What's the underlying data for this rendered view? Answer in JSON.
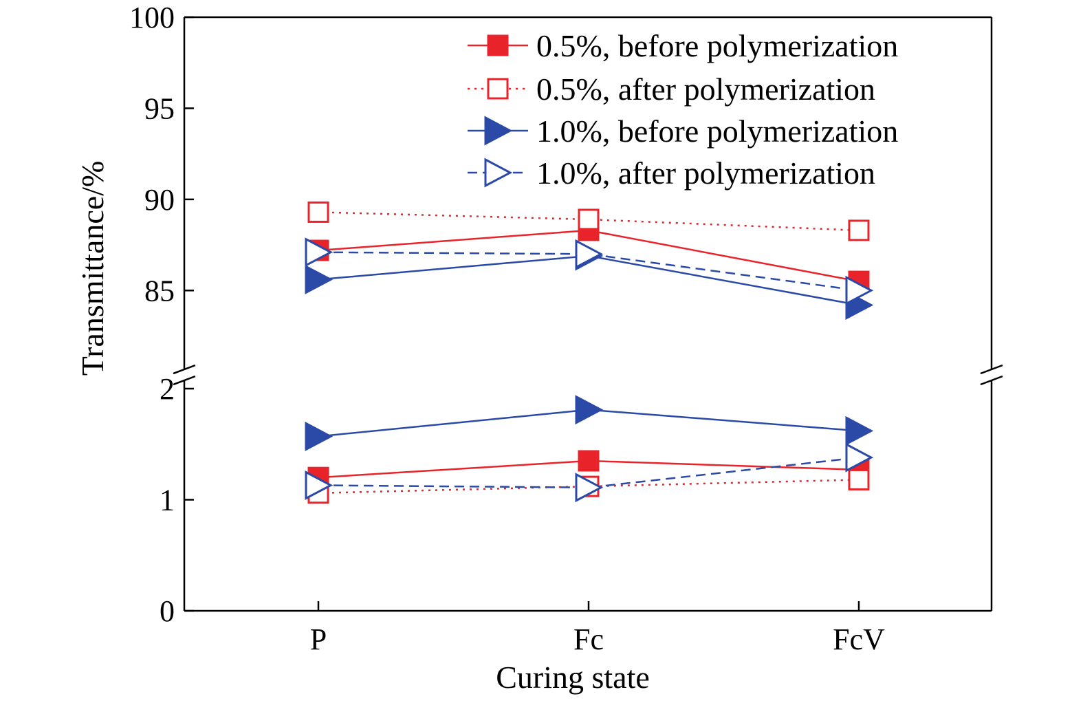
{
  "chart_data": {
    "type": "line",
    "xlabel": "Curing state",
    "ylabel": "Transmittance/%",
    "categories": [
      "P",
      "Fc",
      "FcV"
    ],
    "y_axis": {
      "broken": true,
      "lower_segment": {
        "range": [
          0,
          2
        ],
        "ticks": [
          0,
          1,
          2
        ],
        "tick_labels": [
          "0",
          "1",
          "2"
        ]
      },
      "upper_segment": {
        "range": [
          81.5,
          100
        ],
        "ticks": [
          85,
          90,
          95,
          100
        ],
        "tick_labels": [
          "85",
          "90",
          "95",
          "100"
        ]
      }
    },
    "grid": false,
    "legend_position": "top-right",
    "series": [
      {
        "name": "0.5%, before polymerization",
        "color": "#e8232a",
        "line_style": "solid",
        "marker": "filled-square",
        "upper": [
          87.2,
          88.3,
          85.5
        ],
        "lower": [
          1.2,
          1.35,
          1.27
        ]
      },
      {
        "name": "0.5%, after polymerization",
        "color": "#e8232a",
        "line_style": "dotted",
        "marker": "open-square",
        "upper": [
          89.3,
          88.9,
          88.3
        ],
        "lower": [
          1.06,
          1.12,
          1.18
        ]
      },
      {
        "name": "1.0%, before polymerization",
        "color": "#2b4aa8",
        "line_style": "solid",
        "marker": "filled-triangle-right",
        "upper": [
          85.6,
          86.9,
          84.2
        ],
        "lower": [
          1.57,
          1.81,
          1.62
        ]
      },
      {
        "name": "1.0%, after polymerization",
        "color": "#2b4aa8",
        "line_style": "dashed",
        "marker": "open-triangle-right",
        "upper": [
          87.1,
          87.0,
          85.0
        ],
        "lower": [
          1.13,
          1.11,
          1.38
        ]
      }
    ]
  }
}
